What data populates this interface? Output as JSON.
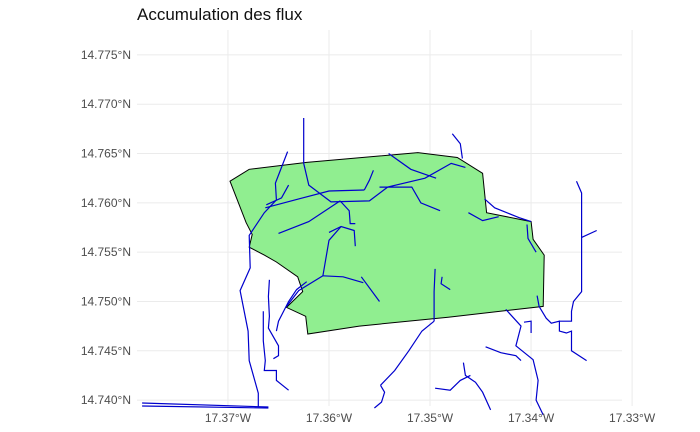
{
  "chart_data": {
    "type": "map",
    "title": "Accumulation des flux",
    "xlabel": "",
    "ylabel": "",
    "xlim": [
      -17.379,
      -17.331
    ],
    "ylim": [
      14.7394,
      14.7755
    ],
    "x_ticks": [
      {
        "value": -17.37,
        "label": "17.37°W"
      },
      {
        "value": -17.36,
        "label": "17.36°W"
      },
      {
        "value": -17.35,
        "label": "17.35°W"
      },
      {
        "value": -17.34,
        "label": "17.34°W"
      },
      {
        "value": -17.33,
        "label": "17.33°W"
      }
    ],
    "y_ticks": [
      {
        "value": 14.74,
        "label": "14.740°N"
      },
      {
        "value": 14.745,
        "label": "14.745°N"
      },
      {
        "value": 14.75,
        "label": "14.750°N"
      },
      {
        "value": 14.755,
        "label": "14.755°N"
      },
      {
        "value": 14.76,
        "label": "14.760°N"
      },
      {
        "value": 14.765,
        "label": "14.765°N"
      },
      {
        "value": 14.77,
        "label": "14.770°N"
      },
      {
        "value": 14.775,
        "label": "14.775°N"
      }
    ],
    "grid": true,
    "colors": {
      "polygon_fill": "#90ee90",
      "polygon_stroke": "#000000",
      "stream": "#0000cd",
      "grid": "#ebebeb"
    },
    "catchment_polygon": [
      [
        -17.3698,
        14.7622
      ],
      [
        -17.3679,
        14.7634
      ],
      [
        -17.3622,
        14.7641
      ],
      [
        -17.3512,
        14.7651
      ],
      [
        -17.3473,
        14.7646
      ],
      [
        -17.3448,
        14.763
      ],
      [
        -17.3444,
        14.759
      ],
      [
        -17.34,
        14.7581
      ],
      [
        -17.3398,
        14.7563
      ],
      [
        -17.3387,
        14.7547
      ],
      [
        -17.3388,
        14.7495
      ],
      [
        -17.3482,
        14.7484
      ],
      [
        -17.357,
        14.7475
      ],
      [
        -17.3621,
        14.7467
      ],
      [
        -17.3623,
        14.7485
      ],
      [
        -17.3642,
        14.7494
      ],
      [
        -17.3626,
        14.751
      ],
      [
        -17.3631,
        14.7525
      ],
      [
        -17.3652,
        14.754
      ],
      [
        -17.3664,
        14.7547
      ],
      [
        -17.3679,
        14.7555
      ],
      [
        -17.3676,
        14.7568
      ],
      [
        -17.3682,
        14.758
      ]
    ],
    "streams": [
      [
        [
          -17.3785,
          14.7397
        ],
        [
          -17.366,
          14.7393
        ]
      ],
      [
        [
          -17.3785,
          14.7394
        ],
        [
          -17.366,
          14.7392
        ]
      ],
      [
        [
          -17.3641,
          14.7652
        ],
        [
          -17.3653,
          14.762
        ],
        [
          -17.3652,
          14.7603
        ],
        [
          -17.3664,
          14.759
        ],
        [
          -17.3679,
          14.7567
        ],
        [
          -17.3678,
          14.7534
        ],
        [
          -17.3688,
          14.7511
        ],
        [
          -17.368,
          14.747
        ],
        [
          -17.3679,
          14.744
        ],
        [
          -17.367,
          14.7407
        ],
        [
          -17.367,
          14.7393
        ]
      ],
      [
        [
          -17.3625,
          14.7686
        ],
        [
          -17.3625,
          14.764
        ],
        [
          -17.362,
          14.7618
        ],
        [
          -17.3598,
          14.7601
        ],
        [
          -17.356,
          14.7602
        ],
        [
          -17.3542,
          14.7616
        ],
        [
          -17.3505,
          14.7625
        ],
        [
          -17.3479,
          14.764
        ],
        [
          -17.3465,
          14.7636
        ]
      ],
      [
        [
          -17.3663,
          14.7595
        ],
        [
          -17.363,
          14.7604
        ],
        [
          -17.36,
          14.7612
        ],
        [
          -17.3565,
          14.7613
        ]
      ],
      [
        [
          -17.3565,
          14.7613
        ],
        [
          -17.356,
          14.7623
        ],
        [
          -17.3556,
          14.7633
        ]
      ],
      [
        [
          -17.355,
          14.7616
        ],
        [
          -17.3518,
          14.7616
        ],
        [
          -17.3509,
          14.76
        ],
        [
          -17.349,
          14.7592
        ]
      ],
      [
        [
          -17.3478,
          14.767
        ],
        [
          -17.347,
          14.766
        ],
        [
          -17.3468,
          14.7645
        ]
      ],
      [
        [
          -17.3589,
          14.7602
        ],
        [
          -17.362,
          14.7581
        ],
        [
          -17.365,
          14.7569
        ]
      ],
      [
        [
          -17.3574,
          14.7556
        ],
        [
          -17.3575,
          14.7572
        ],
        [
          -17.3588,
          14.7576
        ],
        [
          -17.36,
          14.757
        ]
      ],
      [
        [
          -17.3589,
          14.7602
        ],
        [
          -17.358,
          14.7592
        ],
        [
          -17.3579,
          14.7579
        ],
        [
          -17.3574,
          14.7579
        ]
      ],
      [
        [
          -17.3588,
          14.7576
        ],
        [
          -17.36,
          14.7562
        ],
        [
          -17.3606,
          14.7526
        ],
        [
          -17.363,
          14.7511
        ],
        [
          -17.3642,
          14.7495
        ]
      ],
      [
        [
          -17.3606,
          14.7526
        ],
        [
          -17.3586,
          14.7525
        ],
        [
          -17.3566,
          14.7519
        ]
      ],
      [
        [
          -17.3568,
          14.7525
        ],
        [
          -17.355,
          14.75
        ]
      ],
      [
        [
          -17.3541,
          14.765
        ],
        [
          -17.3519,
          14.7634
        ],
        [
          -17.3494,
          14.7625
        ]
      ],
      [
        [
          -17.3662,
          14.7598
        ],
        [
          -17.3647,
          14.7605
        ],
        [
          -17.364,
          14.7618
        ]
      ],
      [
        [
          -17.3495,
          14.7533
        ],
        [
          -17.3496,
          14.751
        ],
        [
          -17.3496,
          14.748
        ]
      ],
      [
        [
          -17.3488,
          14.7525
        ],
        [
          -17.3489,
          14.7518
        ],
        [
          -17.348,
          14.7512
        ]
      ],
      [
        [
          -17.3462,
          14.759
        ],
        [
          -17.3448,
          14.7582
        ],
        [
          -17.3432,
          14.7586
        ]
      ],
      [
        [
          -17.3446,
          14.7604
        ],
        [
          -17.3436,
          14.7595
        ],
        [
          -17.3424,
          14.759
        ],
        [
          -17.3412,
          14.7585
        ],
        [
          -17.34,
          14.7581
        ]
      ],
      [
        [
          -17.3404,
          14.7578
        ],
        [
          -17.3403,
          14.7564
        ],
        [
          -17.3395,
          14.755
        ]
      ],
      [
        [
          -17.3496,
          14.748
        ],
        [
          -17.3508,
          14.747
        ],
        [
          -17.3521,
          14.745
        ],
        [
          -17.3535,
          14.743
        ],
        [
          -17.3549,
          14.7415
        ]
      ],
      [
        [
          -17.3549,
          14.7415
        ],
        [
          -17.3545,
          14.7408
        ],
        [
          -17.3548,
          14.7398
        ],
        [
          -17.3555,
          14.7392
        ]
      ],
      [
        [
          -17.3425,
          14.7492
        ],
        [
          -17.341,
          14.7475
        ],
        [
          -17.3415,
          14.7455
        ],
        [
          -17.3398,
          14.7441
        ],
        [
          -17.3393,
          14.742
        ],
        [
          -17.3395,
          14.74
        ],
        [
          -17.3388,
          14.7385
        ]
      ],
      [
        [
          -17.3407,
          14.7479
        ],
        [
          -17.34,
          14.748
        ],
        [
          -17.34,
          14.7468
        ]
      ],
      [
        [
          -17.3445,
          14.7454
        ],
        [
          -17.343,
          14.7448
        ],
        [
          -17.3415,
          14.7445
        ],
        [
          -17.341,
          14.744
        ]
      ],
      [
        [
          -17.3398,
          14.742
        ]
      ],
      [
        [
          -17.3467,
          14.7438
        ],
        [
          -17.3465,
          14.7425
        ],
        [
          -17.3455,
          14.7418
        ],
        [
          -17.3448,
          14.7408
        ],
        [
          -17.344,
          14.739
        ]
      ],
      [
        [
          -17.346,
          14.7425
        ],
        [
          -17.347,
          14.742
        ],
        [
          -17.348,
          14.741
        ],
        [
          -17.3495,
          14.7412
        ]
      ],
      [
        [
          -17.3394,
          14.7506
        ],
        [
          -17.3392,
          14.7495
        ],
        [
          -17.3385,
          14.7483
        ],
        [
          -17.338,
          14.7478
        ],
        [
          -17.3372,
          14.748
        ],
        [
          -17.3372,
          14.747
        ],
        [
          -17.3365,
          14.7468
        ],
        [
          -17.336,
          14.747
        ],
        [
          -17.336,
          14.745
        ],
        [
          -17.3345,
          14.744
        ]
      ],
      [
        [
          -17.3355,
          14.7622
        ],
        [
          -17.335,
          14.761
        ],
        [
          -17.335,
          14.759
        ],
        [
          -17.335,
          14.7563
        ],
        [
          -17.335,
          14.755
        ],
        [
          -17.335,
          14.751
        ],
        [
          -17.3358,
          14.75
        ],
        [
          -17.336,
          14.749
        ],
        [
          -17.336,
          14.748
        ],
        [
          -17.3372,
          14.748
        ]
      ],
      [
        [
          -17.335,
          14.7565
        ],
        [
          -17.3335,
          14.7572
        ]
      ],
      [
        [
          -17.3659,
          14.7522
        ],
        [
          -17.366,
          14.7505
        ],
        [
          -17.3659,
          14.7485
        ],
        [
          -17.366,
          14.7473
        ],
        [
          -17.365,
          14.7455
        ],
        [
          -17.365,
          14.7445
        ],
        [
          -17.3655,
          14.7442
        ]
      ],
      [
        [
          -17.3665,
          14.749
        ],
        [
          -17.3665,
          14.746
        ],
        [
          -17.3663,
          14.744
        ],
        [
          -17.3664,
          14.743
        ],
        [
          -17.3652,
          14.743
        ],
        [
          -17.3652,
          14.742
        ],
        [
          -17.364,
          14.741
        ]
      ],
      [
        [
          -17.3622,
          14.752
        ],
        [
          -17.3632,
          14.7512
        ],
        [
          -17.364,
          14.75
        ],
        [
          -17.365,
          14.748
        ],
        [
          -17.3652,
          14.747
        ]
      ]
    ]
  }
}
